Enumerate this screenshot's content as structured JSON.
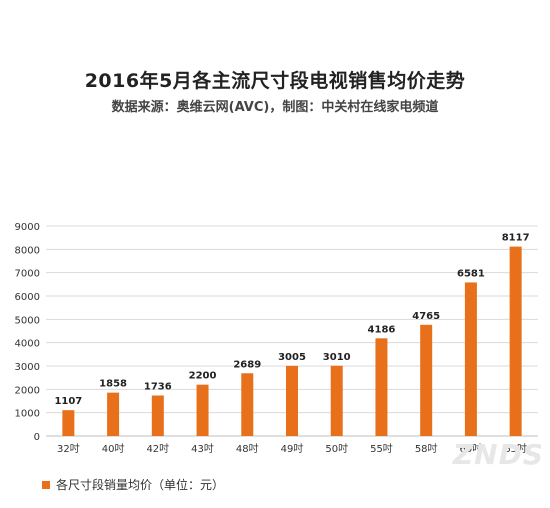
{
  "chart_data": {
    "type": "bar",
    "title": "2016年5月各主流尺寸段电视销售均价走势",
    "subtitle": "数据来源：奥维云网(AVC)，制图：中关村在线家电频道",
    "categories": [
      "32吋",
      "40吋",
      "42吋",
      "43吋",
      "48吋",
      "49吋",
      "50吋",
      "55吋",
      "58吋",
      "60吋",
      "65吋"
    ],
    "series": [
      {
        "name": "各尺寸段销量均价（单位：元）",
        "values": [
          1107,
          1858,
          1736,
          2200,
          2689,
          3005,
          3010,
          4186,
          4765,
          6581,
          8117
        ]
      }
    ],
    "yticks": [
      "0",
      "1000",
      "2000",
      "3000",
      "4000",
      "5000",
      "6000",
      "7000",
      "8000",
      "9000"
    ],
    "ylim": [
      0,
      9000
    ],
    "grid": "horizontal",
    "legend_position": "bottom-left",
    "colors": {
      "bar": "#e8701a",
      "grid": "#d9d9d9",
      "axis": "#bfbfbf"
    }
  },
  "watermark": "ZNDS"
}
